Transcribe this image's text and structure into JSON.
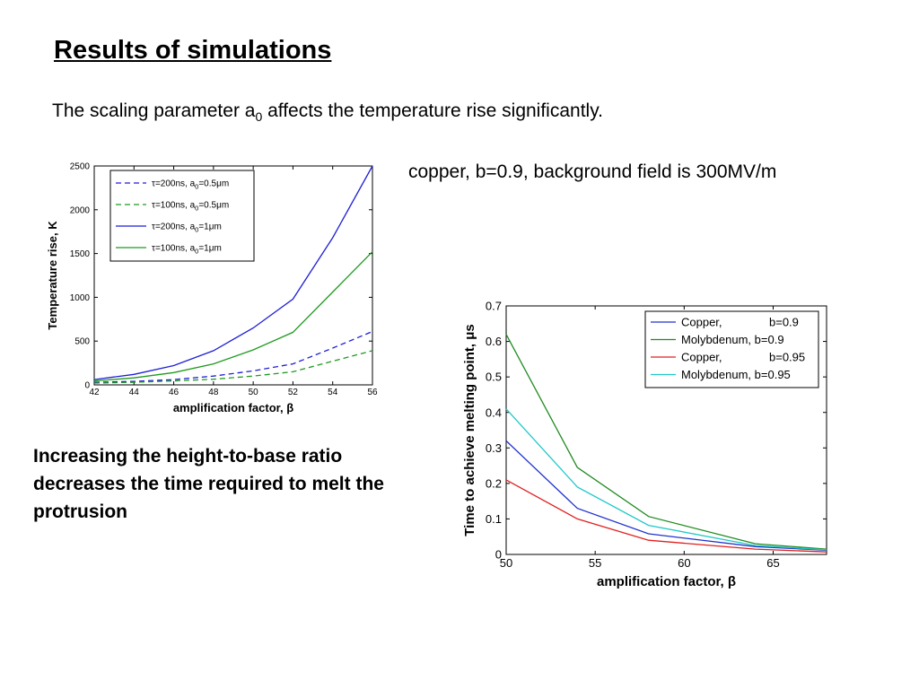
{
  "slide": {
    "title": "Results of simulations",
    "subtitle_pre": "The scaling parameter a",
    "subtitle_sub": "0",
    "subtitle_post": " affects the temperature rise significantly.",
    "note": "copper, b=0.9, background field is 300MV/m",
    "conclusion": "Increasing the height-to-base ratio decreases the time required to melt the protrusion"
  },
  "chart_data": [
    {
      "type": "line",
      "xlabel": "amplification factor, β",
      "ylabel": "Temperature rise, K",
      "xlim": [
        42,
        56
      ],
      "ylim": [
        0,
        2500
      ],
      "xticks": [
        42,
        44,
        46,
        48,
        50,
        52,
        54,
        56
      ],
      "yticks": [
        0,
        500,
        1000,
        1500,
        2000,
        2500
      ],
      "grid": false,
      "legend_position": "top-left",
      "series": [
        {
          "name": "τ=200ns, a0=0.5μm",
          "legend_main": "τ=200ns, a",
          "legend_sub": "0",
          "legend_tail": "=0.5μm",
          "color": "#1f1fd6",
          "dash": true,
          "x": [
            42,
            44,
            46,
            48,
            50,
            52,
            54,
            56
          ],
          "y": [
            30,
            40,
            60,
            100,
            160,
            240,
            420,
            610
          ]
        },
        {
          "name": "τ=100ns, a0=0.5μm",
          "legend_main": "τ=100ns, a",
          "legend_sub": "0",
          "legend_tail": "=0.5μm",
          "color": "#1f9a1f",
          "dash": true,
          "x": [
            42,
            44,
            46,
            48,
            50,
            52,
            54,
            56
          ],
          "y": [
            20,
            30,
            45,
            65,
            100,
            150,
            270,
            390
          ]
        },
        {
          "name": "τ=200ns, a0=1μm",
          "legend_main": "τ=200ns, a",
          "legend_sub": "0",
          "legend_tail": "=1μm",
          "color": "#1f1fd6",
          "dash": false,
          "x": [
            42,
            44,
            46,
            48,
            50,
            52,
            54,
            56
          ],
          "y": [
            60,
            120,
            220,
            390,
            650,
            980,
            1680,
            2500
          ]
        },
        {
          "name": "τ=100ns, a0=1μm",
          "legend_main": "τ=100ns, a",
          "legend_sub": "0",
          "legend_tail": "=1μm",
          "color": "#1f9a1f",
          "dash": false,
          "x": [
            42,
            44,
            46,
            48,
            50,
            52,
            54,
            56
          ],
          "y": [
            45,
            80,
            140,
            240,
            400,
            600,
            1060,
            1520
          ]
        }
      ]
    },
    {
      "type": "line",
      "xlabel": "amplification factor, β",
      "ylabel": "Time to achieve melting point, μs",
      "xlim": [
        50,
        68
      ],
      "ylim": [
        0,
        0.7
      ],
      "xticks": [
        50,
        55,
        60,
        65
      ],
      "yticks": [
        0,
        0.1,
        0.2,
        0.3,
        0.4,
        0.5,
        0.6,
        0.7
      ],
      "grid": false,
      "legend_position": "top-right",
      "series": [
        {
          "name": "Copper, b=0.9",
          "legend_a": "Copper,",
          "legend_b": "b=0.9",
          "color": "#2233cc",
          "dash": false,
          "x": [
            50,
            54,
            58,
            64,
            68
          ],
          "y": [
            0.32,
            0.13,
            0.058,
            0.022,
            0.012
          ]
        },
        {
          "name": "Molybdenum, b=0.9",
          "legend_a": "Molybdenum, b=0.9",
          "legend_b": "",
          "color": "#1f8a1f",
          "dash": false,
          "x": [
            50,
            54,
            58,
            64,
            68
          ],
          "y": [
            0.62,
            0.245,
            0.107,
            0.03,
            0.015
          ]
        },
        {
          "name": "Copper, b=0.95",
          "legend_a": "Copper,",
          "legend_b": "b=0.95",
          "color": "#e02020",
          "dash": false,
          "x": [
            50,
            54,
            58,
            64,
            68
          ],
          "y": [
            0.21,
            0.1,
            0.04,
            0.015,
            0.007
          ]
        },
        {
          "name": "Molybdenum, b=0.95",
          "legend_a": "Molybdenum, b=0.95",
          "legend_b": "",
          "color": "#22c8c8",
          "dash": false,
          "x": [
            50,
            54,
            58,
            64,
            68
          ],
          "y": [
            0.41,
            0.19,
            0.082,
            0.025,
            0.013
          ]
        }
      ]
    }
  ]
}
